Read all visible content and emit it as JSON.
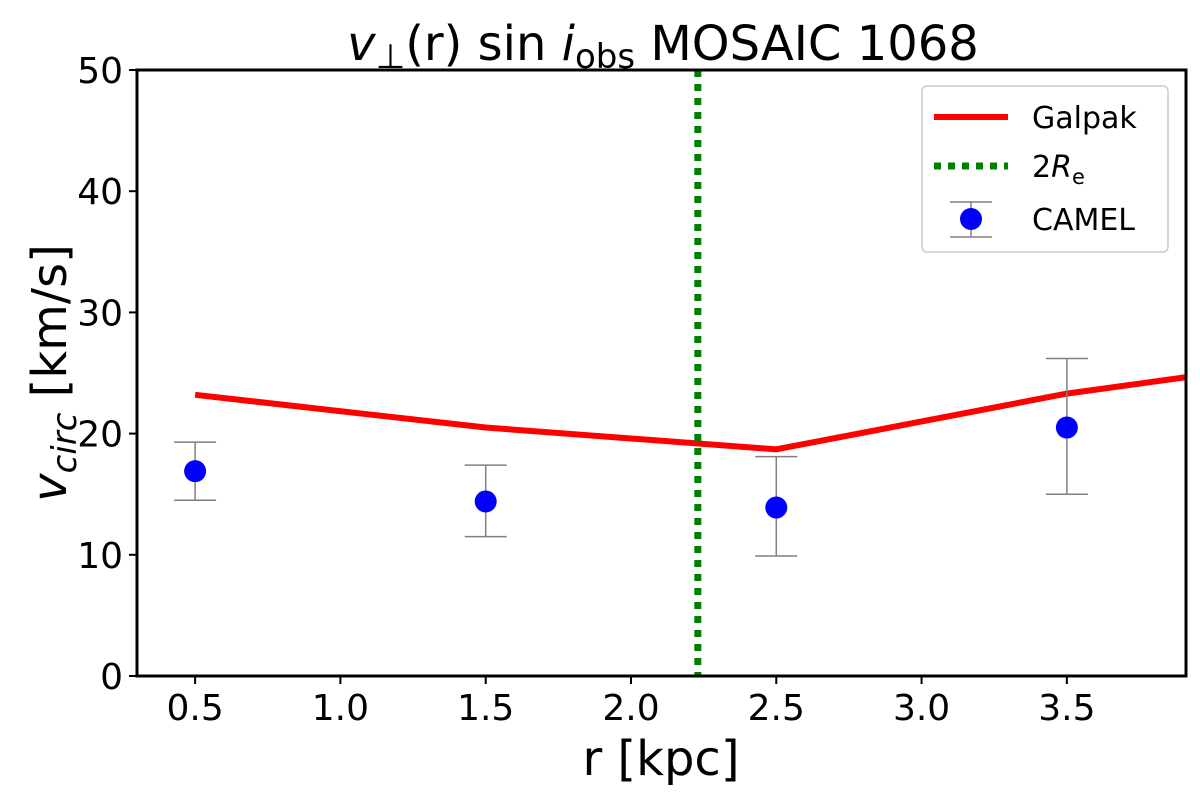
{
  "chart_data": {
    "type": "line",
    "title": {
      "v": "v",
      "perp": "⊥",
      "r": "(r)",
      "sin": " sin ",
      "i": "i",
      "obs": "obs",
      "rest": " MOSAIC 1068"
    },
    "xlabel": "r [kpc]",
    "ylabel": {
      "v": "v",
      "sub": "circ",
      "unit": " [km/s]"
    },
    "xlim": [
      0.3,
      3.91
    ],
    "ylim": [
      0,
      50
    ],
    "xticks": [
      0.5,
      1.0,
      1.5,
      2.0,
      2.5,
      3.0,
      3.5
    ],
    "xtick_labels": [
      "0.5",
      "1.0",
      "1.5",
      "2.0",
      "2.5",
      "3.0",
      "3.5"
    ],
    "yticks": [
      0,
      10,
      20,
      30,
      40,
      50
    ],
    "ytick_labels": [
      "0",
      "10",
      "20",
      "30",
      "40",
      "50"
    ],
    "grid": false,
    "legend_position": "top-right",
    "series": [
      {
        "name": "Galpak",
        "kind": "line",
        "color": "#ff0000",
        "x": [
          0.5,
          1.5,
          2.5,
          3.5,
          4.5
        ],
        "y": [
          23.2,
          20.5,
          18.7,
          23.3,
          26.6
        ]
      },
      {
        "name": "2R_e",
        "label_main": "2",
        "label_italic": "R",
        "label_sub": "e",
        "kind": "vline",
        "color": "#008000",
        "x": 2.23
      },
      {
        "name": "CAMEL",
        "kind": "errorbar",
        "color": "#0000ff",
        "errcolor": "#808080",
        "x": [
          0.5,
          1.5,
          2.5,
          3.5
        ],
        "y": [
          16.9,
          14.4,
          13.9,
          20.5
        ],
        "ylow": [
          14.5,
          11.5,
          9.9,
          15.0
        ],
        "yhigh": [
          19.3,
          17.4,
          18.1,
          26.2
        ]
      }
    ]
  }
}
